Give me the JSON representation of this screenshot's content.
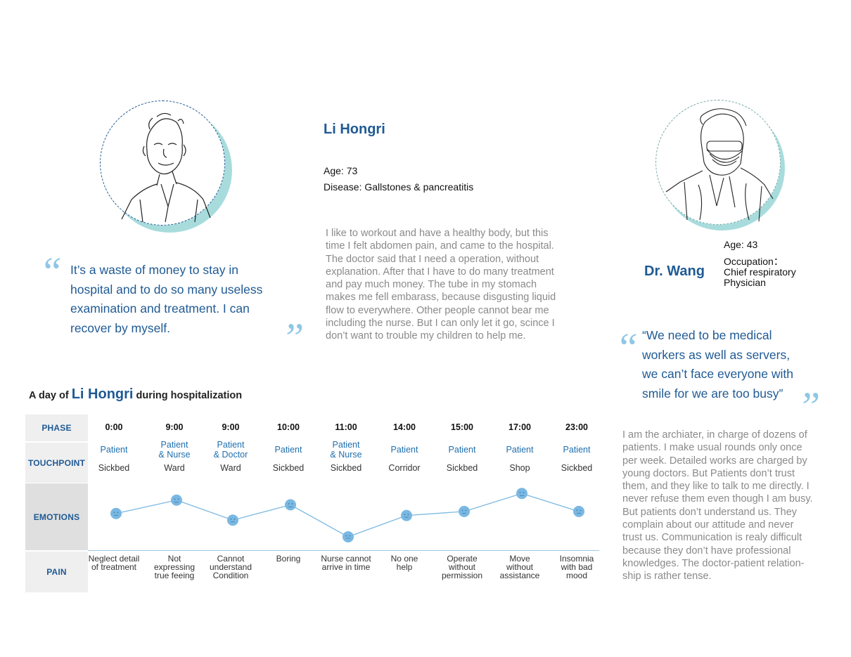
{
  "patient": {
    "name": "Li Hongri",
    "age": "Age: 73",
    "disease": "Disease: Gallstones & pancreatitis",
    "story": [
      "I like to workout and have a healthy body,  but this",
      "time I felt abdomen pain, and came to the hospital.",
      "The doctor said that I need a operation, without",
      "explanation. After that I have to do many treatment",
      "and pay much money. The tube in my stomach",
      "makes me fell embarass, because disgusting liquid",
      "flow to everywhere. Other people cannot bear me",
      "including the nurse. But I can only let it go, scince I",
      "don’t want to trouble my children to help me."
    ],
    "quote": [
      "It’s a waste of money to stay in",
      "hospital and to do so many useless",
      "examination and treatment. I can",
      "recover by myself."
    ]
  },
  "doctor": {
    "name": "Dr. Wang",
    "age": "Age: 43",
    "occupation": [
      "Occupation：",
      "Chief respiratory",
      "Physician"
    ],
    "quote": [
      "“We need to be medical",
      "workers as well as servers,",
      "we can’t face everyone with",
      "smile for we are too busy”"
    ],
    "story": [
      "I am the archiater, in charge of dozens of",
      "patients. I  make usual rounds only once",
      "per week. Detailed works are charged by",
      "young doctors. But Patients don’t trust",
      "them, and they like to talk to me directly. I",
      "never refuse them even though I am busy.",
      "But patients don’t understand us. They",
      "complain about our attitude and never",
      "trust us. Communication is realy difficult",
      "because they don’t have professional",
      "knowledges.  The doctor-patient relation-",
      "ship is rather tense."
    ]
  },
  "journey": {
    "title_prefix": "A day of",
    "title_name": "Li Hongri",
    "title_suffix": "during hospitalization",
    "row_labels": {
      "phase": "PHASE",
      "touchpoint": "TOUCHPOINT",
      "emotions": "EMOTIONS",
      "pain": "PAIN"
    },
    "steps": [
      {
        "time": "0:00",
        "who": [
          "Patient"
        ],
        "place": "Sickbed",
        "pain": [
          "Neglect detail",
          "of treatment"
        ],
        "emotion": 0.55
      },
      {
        "time": "9:00",
        "who": [
          "Patient",
          "& Nurse"
        ],
        "place": "Ward",
        "pain": [
          "Not",
          "expressing",
          "true feeing"
        ],
        "emotion": 0.75
      },
      {
        "time": "9:00",
        "who": [
          "Patient",
          "& Doctor"
        ],
        "place": "Ward",
        "pain": [
          "Cannot",
          "understand",
          "Condition"
        ],
        "emotion": 0.45
      },
      {
        "time": "10:00",
        "who": [
          "Patient"
        ],
        "place": "Sickbed",
        "pain": [
          "Boring"
        ],
        "emotion": 0.68
      },
      {
        "time": "11:00",
        "who": [
          "Patient",
          "& Nurse"
        ],
        "place": "Sickbed",
        "pain": [
          "Nurse cannot",
          "arrive in time"
        ],
        "emotion": 0.2
      },
      {
        "time": "14:00",
        "who": [
          "Patient"
        ],
        "place": "Corridor",
        "pain": [
          "No one",
          "help"
        ],
        "emotion": 0.52
      },
      {
        "time": "15:00",
        "who": [
          "Patient"
        ],
        "place": "Sickbed",
        "pain": [
          "Operate",
          "without",
          "permission"
        ],
        "emotion": 0.58
      },
      {
        "time": "17:00",
        "who": [
          "Patient"
        ],
        "place": "Shop",
        "pain": [
          "Move",
          "without",
          "assistance"
        ],
        "emotion": 0.85
      },
      {
        "time": "23:00",
        "who": [
          "Patient"
        ],
        "place": "Sickbed",
        "pain": [
          "Insomnia",
          "with bad",
          "mood"
        ],
        "emotion": 0.58
      }
    ]
  },
  "colors": {
    "accent": "#1f5a94",
    "teal_shadow": "#a8dcdc",
    "emotion_line": "#7ab8e2",
    "label_bg": "#efefef"
  }
}
